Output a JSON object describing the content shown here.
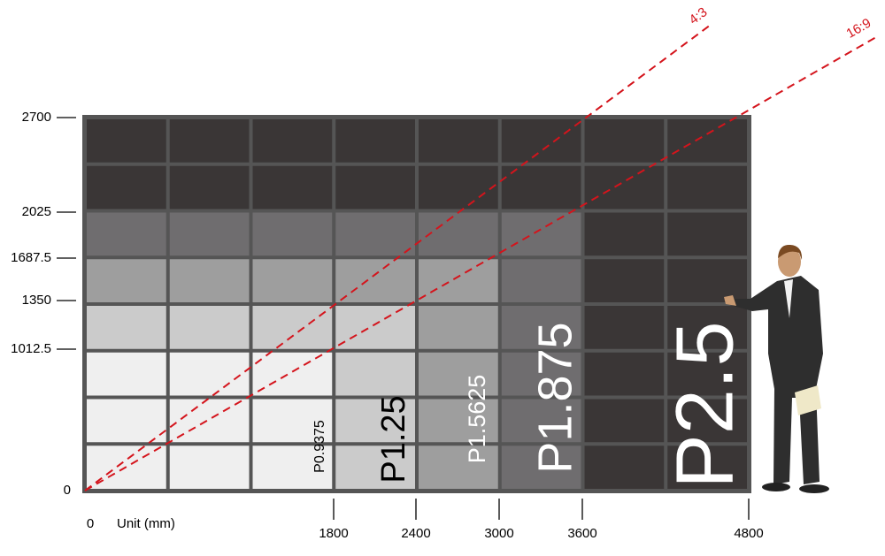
{
  "y_axis": {
    "ticks": [
      "0",
      "1012.5",
      "1350",
      "1687.5",
      "2025",
      "2700"
    ]
  },
  "x_axis": {
    "ticks": [
      "0",
      "1800",
      "2400",
      "3000",
      "3600",
      "4800"
    ],
    "unit": "Unit (mm)"
  },
  "ratios": [
    "4:3",
    "16:9"
  ],
  "pitch_labels": [
    "P0.9375",
    "P1.25",
    "P1.5625",
    "P1.875",
    "P2.5"
  ]
}
